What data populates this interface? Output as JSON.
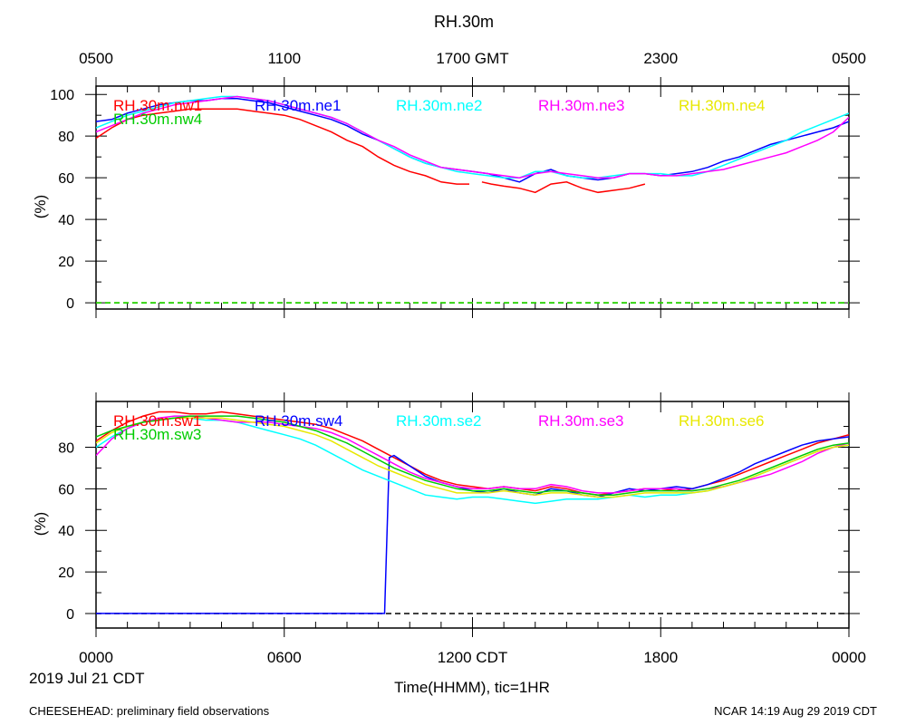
{
  "title": "RH.30m",
  "footer": {
    "left": "CHEESEHEAD: preliminary field observations",
    "right": "NCAR 14:19 Aug 29 2019 CDT"
  },
  "date_label": "2019 Jul 21 CDT",
  "xlabel": "Time(HHMM), tic=1HR",
  "top_axis_ticks": [
    "0500",
    "1100",
    "1700 GMT",
    "2300",
    "0500"
  ],
  "bottom_axis_ticks": [
    "0000",
    "0600",
    "1200 CDT",
    "1800",
    "0000"
  ],
  "chart_data": [
    {
      "type": "line",
      "ylabel": "(%)",
      "ylim": [
        -3,
        104
      ],
      "yticks": [
        0,
        20,
        40,
        60,
        80,
        100
      ],
      "xlim": [
        0,
        24
      ],
      "reference_line": {
        "y": 0,
        "style": "dashed",
        "color": "#e8e800"
      },
      "series": [
        {
          "name": "RH.30m.nw1",
          "color": "#ff0000",
          "x": [
            0,
            0.5,
            1,
            1.5,
            2,
            2.5,
            3,
            3.5,
            4,
            4.5,
            5,
            5.5,
            6,
            6.5,
            7,
            7.5,
            8,
            8.5,
            9,
            9.5,
            10,
            10.5,
            11,
            11.5,
            11.9
          ],
          "y": [
            79,
            84,
            88,
            90,
            91,
            92,
            93,
            93,
            93,
            93,
            92,
            91,
            90,
            88,
            85,
            82,
            78,
            75,
            70,
            66,
            63,
            61,
            58,
            57,
            57
          ]
        },
        {
          "name": "RH.30m.nw1",
          "color": "#ff0000",
          "x": [
            12.3,
            12.6,
            13,
            13.5,
            14,
            14.5,
            15,
            15.5,
            16,
            16.5,
            17,
            17.5
          ],
          "y": [
            58,
            57,
            56,
            55,
            53,
            57,
            58,
            55,
            53,
            54,
            55,
            57
          ]
        },
        {
          "name": "RH.30m.ne1",
          "color": "#0000ff",
          "x": [
            0,
            0.5,
            1,
            1.5,
            2,
            2.5,
            3,
            3.5,
            4,
            4.5,
            5,
            5.5,
            6,
            6.5,
            7,
            7.5,
            8,
            8.5,
            9,
            9.5,
            10,
            10.5,
            11,
            11.5,
            12,
            12.5,
            13,
            13.5,
            14,
            14.5,
            15,
            15.5,
            16,
            16.5,
            17,
            17.5,
            18,
            18.5,
            19,
            19.5,
            20,
            20.5,
            21,
            21.5,
            22,
            22.5,
            23,
            23.5,
            24
          ],
          "y": [
            87,
            88,
            91,
            93,
            95,
            96,
            97,
            97,
            98,
            98,
            97,
            96,
            94,
            92,
            90,
            88,
            85,
            81,
            78,
            74,
            70,
            67,
            65,
            64,
            63,
            62,
            60,
            58,
            62,
            64,
            61,
            60,
            59,
            60,
            62,
            62,
            61,
            62,
            63,
            65,
            68,
            70,
            73,
            76,
            78,
            80,
            82,
            84,
            87
          ]
        },
        {
          "name": "RH.30m.ne2",
          "color": "#00ffff",
          "x": [
            0,
            0.5,
            1,
            1.5,
            2,
            2.5,
            3,
            3.5,
            4,
            4.5,
            5,
            5.5,
            6,
            6.5,
            7,
            7.5,
            8,
            8.5,
            9,
            9.5,
            10,
            10.5,
            11,
            11.5,
            12,
            12.5,
            13,
            13.5,
            14,
            14.5,
            15,
            15.5,
            16,
            16.5,
            17,
            17.5,
            18,
            18.5,
            19,
            19.5,
            20,
            20.5,
            21,
            21.5,
            22,
            22.5,
            23,
            23.5,
            24
          ],
          "y": [
            84,
            87,
            90,
            92,
            94,
            96,
            97,
            98,
            99,
            99,
            98,
            97,
            95,
            93,
            91,
            89,
            86,
            82,
            78,
            74,
            70,
            67,
            65,
            63,
            62,
            61,
            60,
            60,
            63,
            63,
            61,
            60,
            60,
            61,
            62,
            62,
            62,
            61,
            61,
            63,
            66,
            69,
            72,
            75,
            78,
            82,
            85,
            88,
            91
          ]
        },
        {
          "name": "RH.30m.ne3",
          "color": "#ff00ff",
          "x": [
            0,
            0.5,
            1,
            1.5,
            2,
            2.5,
            3,
            3.5,
            4,
            4.5,
            5,
            5.5,
            6,
            6.5,
            7,
            7.5,
            8,
            8.5,
            9,
            9.5,
            10,
            10.5,
            11,
            11.5,
            12,
            12.5,
            13,
            13.5,
            14,
            14.5,
            15,
            15.5,
            16,
            16.5,
            17,
            17.5,
            18,
            18.5,
            19,
            19.5,
            20,
            20.5,
            21,
            21.5,
            22,
            22.5,
            23,
            23.5,
            24
          ],
          "y": [
            82,
            85,
            88,
            91,
            93,
            95,
            96,
            97,
            98,
            99,
            98,
            97,
            95,
            93,
            91,
            89,
            86,
            82,
            78,
            75,
            71,
            68,
            65,
            64,
            63,
            62,
            61,
            60,
            62,
            63,
            62,
            61,
            60,
            60,
            62,
            62,
            61,
            61,
            62,
            63,
            64,
            66,
            68,
            70,
            72,
            75,
            78,
            82,
            89
          ]
        },
        {
          "name": "RH.30m.ne4",
          "color": "#e8e800",
          "x": [
            0,
            24
          ],
          "y": [
            0,
            0
          ]
        },
        {
          "name": "RH.30m.nw4",
          "color": "#00cc00",
          "x": [
            0,
            24
          ],
          "y": [
            0,
            0
          ]
        }
      ]
    },
    {
      "type": "line",
      "ylabel": "(%)",
      "ylim": [
        -7,
        102
      ],
      "yticks": [
        0,
        20,
        40,
        60,
        80
      ],
      "xlim": [
        0,
        24
      ],
      "reference_line": {
        "y": 0,
        "style": "dashed",
        "color": "#000000"
      },
      "series": [
        {
          "name": "RH.30m.sw1",
          "color": "#ff0000",
          "x": [
            0,
            0.5,
            1,
            1.5,
            2,
            2.5,
            3,
            3.5,
            4,
            4.5,
            5,
            5.5,
            6,
            6.5,
            7,
            7.5,
            8,
            8.5,
            9,
            9.5,
            10,
            10.5,
            11,
            11.5,
            12,
            12.5,
            13,
            13.5,
            14,
            14.5,
            15,
            15.5,
            16,
            16.5,
            17,
            17.5,
            18,
            18.5,
            19,
            19.5,
            20,
            20.5,
            21,
            21.5,
            22,
            22.5,
            23,
            23.5,
            24
          ],
          "y": [
            83,
            88,
            92,
            95,
            97,
            97,
            96,
            96,
            97,
            96,
            95,
            94,
            93,
            92,
            91,
            89,
            86,
            83,
            79,
            75,
            71,
            67,
            64,
            62,
            61,
            60,
            61,
            60,
            59,
            61,
            60,
            58,
            57,
            58,
            59,
            60,
            60,
            59,
            60,
            62,
            64,
            67,
            70,
            73,
            76,
            79,
            82,
            84,
            86
          ]
        },
        {
          "name": "RH.30m.sw4",
          "color": "#0000ff",
          "x": [
            0,
            9.2,
            9.35,
            9.5,
            10,
            10.5,
            11,
            11.5,
            12,
            12.5,
            13,
            13.5,
            14,
            14.5,
            15,
            15.5,
            16,
            16.5,
            17,
            17.5,
            18,
            18.5,
            19,
            19.5,
            20,
            20.5,
            21,
            21.5,
            22,
            22.5,
            23,
            23.5,
            24
          ],
          "y": [
            0,
            0,
            75,
            76,
            71,
            66,
            63,
            61,
            59,
            58,
            60,
            58,
            57,
            60,
            59,
            57,
            56,
            58,
            60,
            59,
            60,
            61,
            60,
            62,
            65,
            68,
            72,
            75,
            78,
            81,
            83,
            84,
            85
          ]
        },
        {
          "name": "RH.30m.se2",
          "color": "#00ffff",
          "x": [
            0,
            0.5,
            1,
            1.5,
            2,
            2.5,
            3,
            3.5,
            4,
            4.5,
            5,
            5.5,
            6,
            6.5,
            7,
            7.5,
            8,
            8.5,
            9,
            9.5,
            10,
            10.5,
            11,
            11.5,
            12,
            12.5,
            13,
            13.5,
            14,
            14.5,
            15,
            15.5,
            16,
            16.5,
            17,
            17.5,
            18,
            18.5,
            19,
            19.5,
            20,
            20.5,
            21,
            21.5,
            22,
            22.5,
            23,
            23.5,
            24
          ],
          "y": [
            80,
            85,
            89,
            92,
            93,
            94,
            94,
            93,
            93,
            92,
            90,
            88,
            86,
            84,
            81,
            77,
            73,
            69,
            66,
            63,
            60,
            57,
            56,
            55,
            56,
            56,
            55,
            54,
            53,
            54,
            55,
            55,
            55,
            56,
            57,
            56,
            57,
            57,
            58,
            59,
            61,
            63,
            66,
            69,
            72,
            75,
            78,
            80,
            81
          ]
        },
        {
          "name": "RH.30m.se3",
          "color": "#ff00ff",
          "x": [
            0,
            0.5,
            1,
            1.5,
            2,
            2.5,
            3,
            3.5,
            4,
            4.5,
            5,
            5.5,
            6,
            6.5,
            7,
            7.5,
            8,
            8.5,
            9,
            9.5,
            10,
            10.5,
            11,
            11.5,
            12,
            12.5,
            13,
            13.5,
            14,
            14.5,
            15,
            15.5,
            16,
            16.5,
            17,
            17.5,
            18,
            18.5,
            19,
            19.5,
            20,
            20.5,
            21,
            21.5,
            22,
            22.5,
            23,
            23.5,
            24
          ],
          "y": [
            76,
            84,
            89,
            92,
            94,
            95,
            95,
            94,
            93,
            92,
            92,
            92,
            91,
            90,
            89,
            87,
            84,
            80,
            76,
            72,
            68,
            65,
            63,
            61,
            60,
            60,
            61,
            60,
            60,
            62,
            61,
            59,
            58,
            58,
            59,
            60,
            60,
            60,
            59,
            60,
            61,
            63,
            65,
            67,
            70,
            73,
            77,
            80,
            82
          ]
        },
        {
          "name": "RH.30m.se6",
          "color": "#e8e800",
          "x": [
            0,
            0.5,
            1,
            1.5,
            2,
            2.5,
            3,
            3.5,
            4,
            4.5,
            5,
            5.5,
            6,
            6.5,
            7,
            7.5,
            8,
            8.5,
            9,
            9.5,
            10,
            10.5,
            11,
            11.5,
            12,
            12.5,
            13,
            13.5,
            14,
            14.5,
            15,
            15.5,
            16,
            16.5,
            17,
            17.5,
            18,
            18.5,
            19,
            19.5,
            20,
            20.5,
            21,
            21.5,
            22,
            22.5,
            23,
            23.5,
            24
          ],
          "y": [
            82,
            87,
            90,
            92,
            93,
            94,
            94,
            94,
            94,
            93,
            92,
            91,
            90,
            88,
            86,
            83,
            79,
            75,
            71,
            68,
            65,
            62,
            60,
            58,
            58,
            58,
            59,
            58,
            57,
            58,
            58,
            57,
            56,
            56,
            57,
            58,
            58,
            58,
            58,
            59,
            61,
            63,
            66,
            69,
            72,
            75,
            78,
            80,
            81
          ]
        },
        {
          "name": "RH.30m.sw3",
          "color": "#00cc00",
          "x": [
            0,
            0.5,
            1,
            1.5,
            2,
            2.5,
            3,
            3.5,
            4,
            4.5,
            5,
            5.5,
            6,
            6.5,
            7,
            7.5,
            8,
            8.5,
            9,
            9.5,
            10,
            10.5,
            11,
            11.5,
            12,
            12.5,
            13,
            13.5,
            14,
            14.5,
            15,
            15.5,
            16,
            16.5,
            17,
            17.5,
            18,
            18.5,
            19,
            19.5,
            20,
            20.5,
            21,
            21.5,
            22,
            22.5,
            23,
            23.5,
            24
          ],
          "y": [
            85,
            88,
            90,
            92,
            93,
            94,
            95,
            95,
            95,
            95,
            94,
            93,
            92,
            90,
            88,
            85,
            82,
            78,
            74,
            70,
            67,
            64,
            62,
            60,
            59,
            59,
            60,
            59,
            58,
            59,
            59,
            58,
            57,
            57,
            58,
            59,
            59,
            59,
            59,
            60,
            62,
            64,
            67,
            70,
            73,
            76,
            79,
            81,
            82
          ]
        }
      ]
    }
  ]
}
